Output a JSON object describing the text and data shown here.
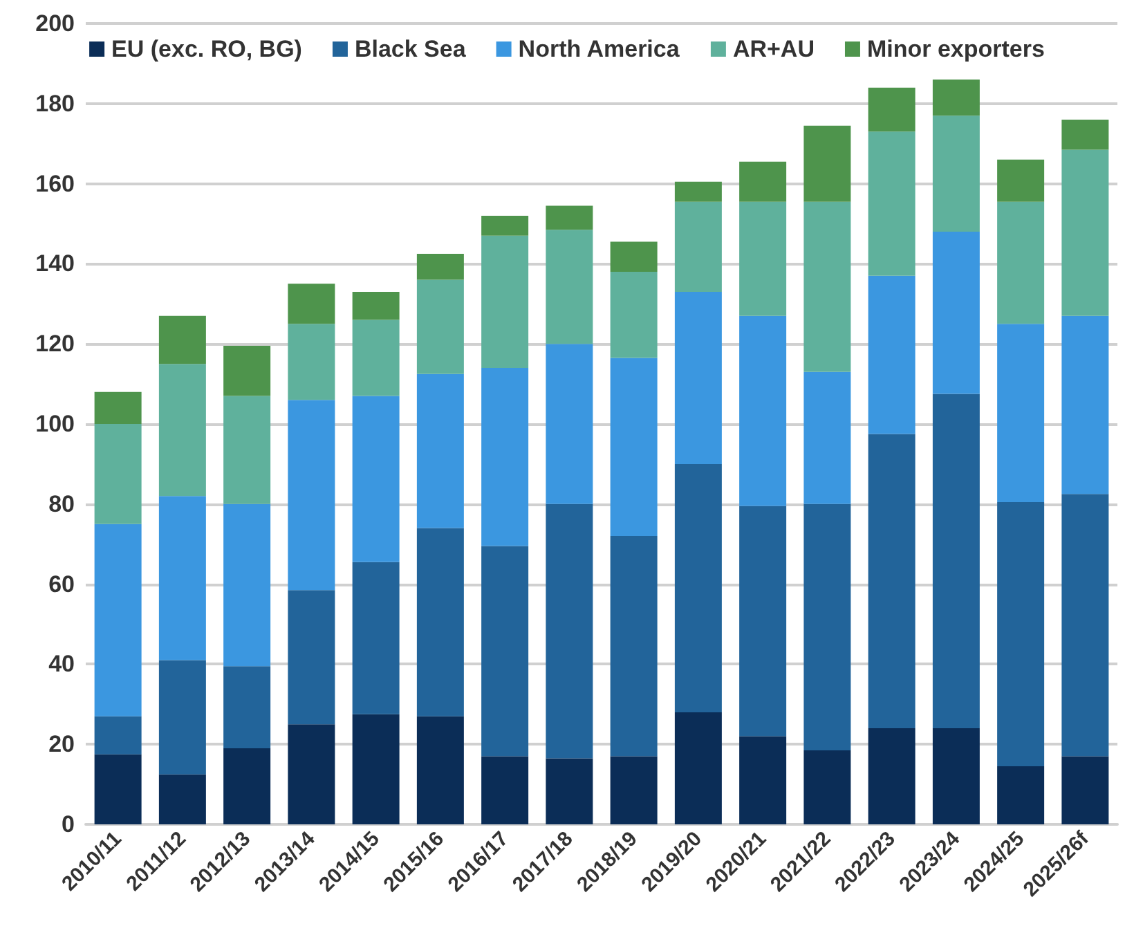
{
  "chart_data": {
    "type": "bar",
    "stacked": true,
    "categories": [
      "2010/11",
      "2011/12",
      "2012/13",
      "2013/14",
      "2014/15",
      "2015/16",
      "2016/17",
      "2017/18",
      "2018/19",
      "2019/20",
      "2020/21",
      "2021/22",
      "2022/23",
      "2023/24",
      "2024/25",
      "2025/26f"
    ],
    "series": [
      {
        "name": "EU (exc. RO, BG)",
        "color": "#0b2d57",
        "values": [
          17.5,
          12.5,
          19,
          25,
          27.5,
          27,
          17,
          16.5,
          17,
          28,
          22,
          18.5,
          24,
          24,
          14.5,
          17
        ]
      },
      {
        "name": "Black Sea",
        "color": "#22649a",
        "values": [
          9.5,
          28.5,
          20.5,
          33.5,
          38,
          47,
          52.5,
          63.5,
          55,
          62,
          57.5,
          61.5,
          73.5,
          83.5,
          66,
          65.5
        ]
      },
      {
        "name": "North America",
        "color": "#3b97e0",
        "values": [
          48,
          41,
          40.5,
          47.5,
          41.5,
          38.5,
          44.5,
          40,
          44.5,
          43,
          47.5,
          33,
          39.5,
          40.5,
          44.5,
          44.5
        ]
      },
      {
        "name": "AR+AU",
        "color": "#5fb19c",
        "values": [
          25,
          33,
          27,
          19,
          19,
          23.5,
          33,
          28.5,
          21.5,
          22.5,
          28.5,
          42.5,
          36,
          29,
          30.5,
          41.5
        ]
      },
      {
        "name": "Minor exporters",
        "color": "#4e944c",
        "values": [
          8,
          12,
          12.5,
          10,
          7,
          6.5,
          5,
          6,
          7.5,
          5,
          10,
          19,
          11,
          9,
          10.5,
          7.5
        ]
      }
    ],
    "ylim": [
      0,
      200
    ],
    "yticks": [
      0,
      20,
      40,
      60,
      80,
      100,
      120,
      140,
      160,
      180,
      200
    ],
    "grid": "y",
    "legend": "top"
  }
}
